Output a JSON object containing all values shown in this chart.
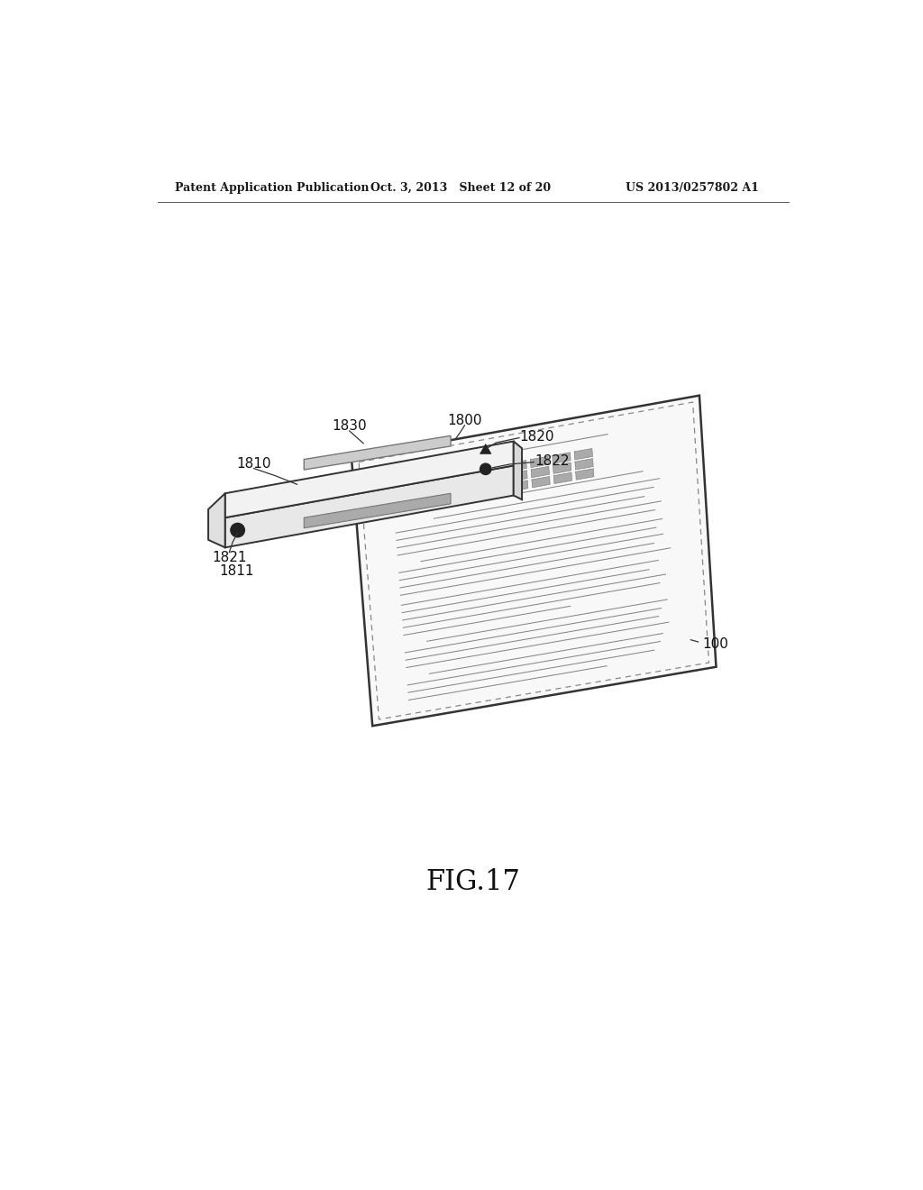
{
  "header_left": "Patent Application Publication",
  "header_mid": "Oct. 3, 2013   Sheet 12 of 20",
  "header_right": "US 2013/0257802 A1",
  "fig_label": "FIG.17",
  "background_color": "#ffffff",
  "line_color": "#333333"
}
